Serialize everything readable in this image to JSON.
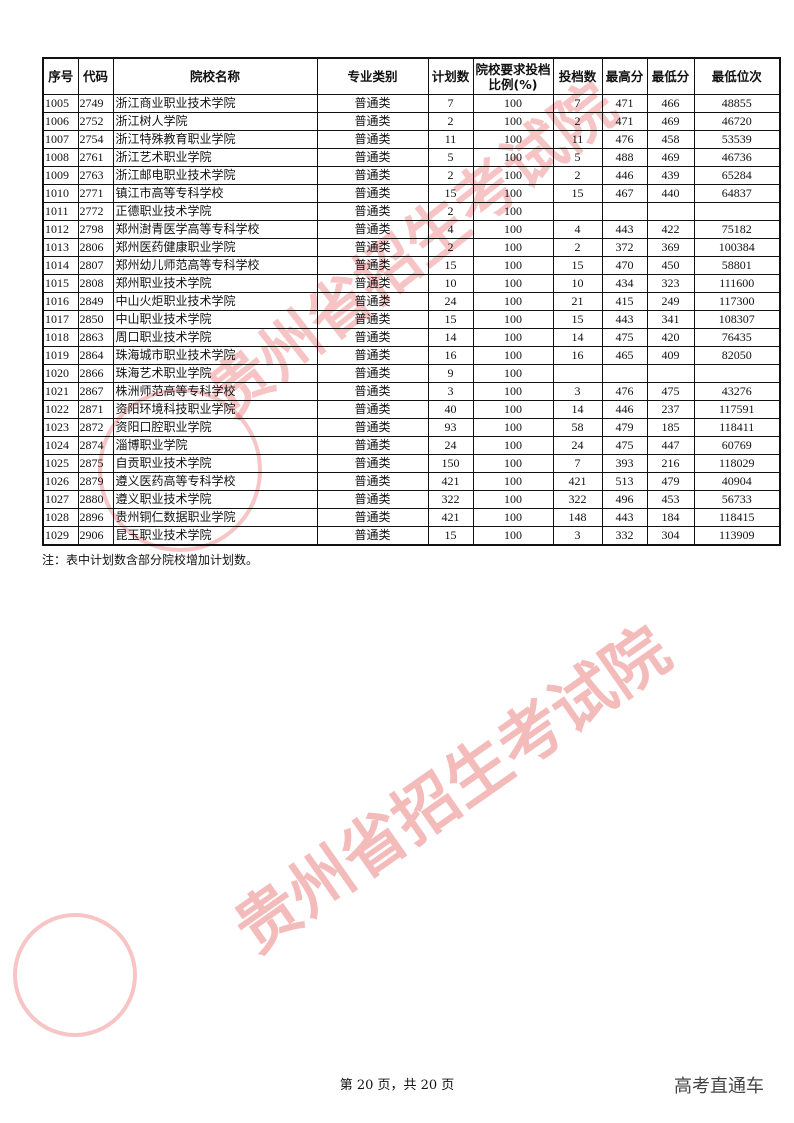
{
  "table": {
    "headers": [
      "序号",
      "代码",
      "院校名称",
      "专业类别",
      "计划数",
      "院校要求投档比例(%)",
      "投档数",
      "最高分",
      "最低分",
      "最低位次"
    ],
    "rows": [
      [
        "1005",
        "2749",
        "浙江商业职业技术学院",
        "普通类",
        "7",
        "100",
        "7",
        "471",
        "466",
        "48855"
      ],
      [
        "1006",
        "2752",
        "浙江树人学院",
        "普通类",
        "2",
        "100",
        "2",
        "471",
        "469",
        "46720"
      ],
      [
        "1007",
        "2754",
        "浙江特殊教育职业学院",
        "普通类",
        "11",
        "100",
        "11",
        "476",
        "458",
        "53539"
      ],
      [
        "1008",
        "2761",
        "浙江艺术职业学院",
        "普通类",
        "5",
        "100",
        "5",
        "488",
        "469",
        "46736"
      ],
      [
        "1009",
        "2763",
        "浙江邮电职业技术学院",
        "普通类",
        "2",
        "100",
        "2",
        "446",
        "439",
        "65284"
      ],
      [
        "1010",
        "2771",
        "镇江市高等专科学校",
        "普通类",
        "15",
        "100",
        "15",
        "467",
        "440",
        "64837"
      ],
      [
        "1011",
        "2772",
        "正德职业技术学院",
        "普通类",
        "2",
        "100",
        "",
        "",
        "",
        ""
      ],
      [
        "1012",
        "2798",
        "郑州澍青医学高等专科学校",
        "普通类",
        "4",
        "100",
        "4",
        "443",
        "422",
        "75182"
      ],
      [
        "1013",
        "2806",
        "郑州医药健康职业学院",
        "普通类",
        "2",
        "100",
        "2",
        "372",
        "369",
        "100384"
      ],
      [
        "1014",
        "2807",
        "郑州幼儿师范高等专科学校",
        "普通类",
        "15",
        "100",
        "15",
        "470",
        "450",
        "58801"
      ],
      [
        "1015",
        "2808",
        "郑州职业技术学院",
        "普通类",
        "10",
        "100",
        "10",
        "434",
        "323",
        "111600"
      ],
      [
        "1016",
        "2849",
        "中山火炬职业技术学院",
        "普通类",
        "24",
        "100",
        "21",
        "415",
        "249",
        "117300"
      ],
      [
        "1017",
        "2850",
        "中山职业技术学院",
        "普通类",
        "15",
        "100",
        "15",
        "443",
        "341",
        "108307"
      ],
      [
        "1018",
        "2863",
        "周口职业技术学院",
        "普通类",
        "14",
        "100",
        "14",
        "475",
        "420",
        "76435"
      ],
      [
        "1019",
        "2864",
        "珠海城市职业技术学院",
        "普通类",
        "16",
        "100",
        "16",
        "465",
        "409",
        "82050"
      ],
      [
        "1020",
        "2866",
        "珠海艺术职业学院",
        "普通类",
        "9",
        "100",
        "",
        "",
        "",
        ""
      ],
      [
        "1021",
        "2867",
        "株洲师范高等专科学校",
        "普通类",
        "3",
        "100",
        "3",
        "476",
        "475",
        "43276"
      ],
      [
        "1022",
        "2871",
        "资阳环境科技职业学院",
        "普通类",
        "40",
        "100",
        "14",
        "446",
        "237",
        "117591"
      ],
      [
        "1023",
        "2872",
        "资阳口腔职业学院",
        "普通类",
        "93",
        "100",
        "58",
        "479",
        "185",
        "118411"
      ],
      [
        "1024",
        "2874",
        "淄博职业学院",
        "普通类",
        "24",
        "100",
        "24",
        "475",
        "447",
        "60769"
      ],
      [
        "1025",
        "2875",
        "自贡职业技术学院",
        "普通类",
        "150",
        "100",
        "7",
        "393",
        "216",
        "118029"
      ],
      [
        "1026",
        "2879",
        "遵义医药高等专科学校",
        "普通类",
        "421",
        "100",
        "421",
        "513",
        "479",
        "40904"
      ],
      [
        "1027",
        "2880",
        "遵义职业技术学院",
        "普通类",
        "322",
        "100",
        "322",
        "496",
        "453",
        "56733"
      ],
      [
        "1028",
        "2896",
        "贵州铜仁数据职业学院",
        "普通类",
        "421",
        "100",
        "148",
        "443",
        "184",
        "118415"
      ],
      [
        "1029",
        "2906",
        "昆玉职业技术学院",
        "普通类",
        "15",
        "100",
        "3",
        "332",
        "304",
        "113909"
      ]
    ]
  },
  "note": "注：表中计划数含部分院校增加计划数。",
  "footer": "第 20 页，共 20 页",
  "brand": "高考直通车",
  "watermark": {
    "text": "贵州省招生考试院",
    "color": "#e03c3c"
  }
}
